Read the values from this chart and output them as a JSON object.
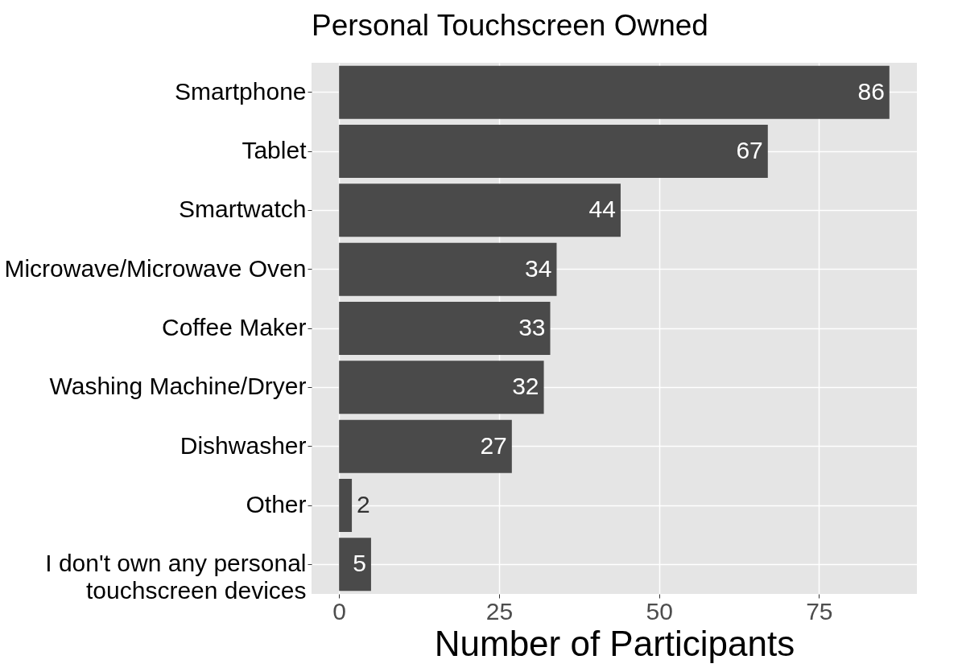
{
  "chart_data": {
    "type": "bar",
    "orientation": "horizontal",
    "title": "Personal Touchscreen Owned",
    "xlabel": "Number of Participants",
    "categories": [
      "Smartphone",
      "Tablet",
      "Smartwatch",
      "Microwave/Microwave Oven",
      "Coffee Maker",
      "Washing Machine/Dryer",
      "Dishwasher",
      "Other",
      "I don't own any personal\ntouchscreen devices"
    ],
    "values": [
      86,
      67,
      44,
      34,
      33,
      32,
      27,
      2,
      5
    ],
    "color": "#4a4a4a",
    "xlim": [
      -4.3,
      90.3
    ],
    "xticks": [
      0,
      25,
      50,
      75
    ],
    "grid": true,
    "data_labels": true
  }
}
